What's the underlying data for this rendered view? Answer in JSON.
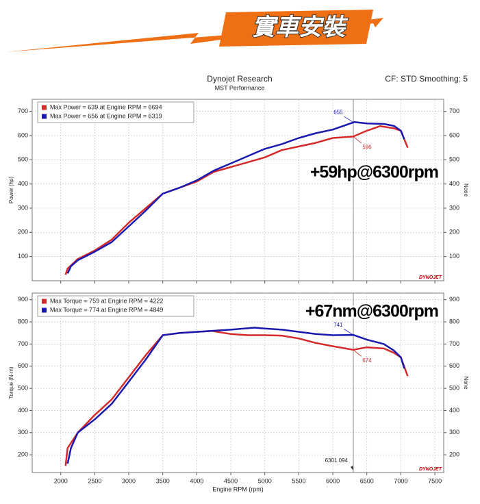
{
  "header": {
    "banner": "實車安裝",
    "title": "Dynojet Research",
    "subtitle": "MST Performance",
    "settings": "CF: STD Smoothing: 5"
  },
  "chart_data": [
    {
      "type": "line",
      "ylabel": "Power (hp)",
      "right_label": "None",
      "logo": "DYNOJET",
      "callout": "+59hp@6300rpm",
      "xlim": [
        1580,
        7630
      ],
      "xticks": [
        2000,
        2500,
        3000,
        3500,
        4000,
        4500,
        5000,
        5500,
        6000,
        6500,
        7000,
        7500
      ],
      "ylim": [
        0,
        750
      ],
      "yticks": [
        100,
        200,
        300,
        400,
        500,
        600,
        700
      ],
      "grid": true,
      "series": [
        {
          "name": "Max Power = 639 at Engine RPM = 6694",
          "color": "#d42a2a",
          "x": [
            2070,
            2100,
            2250,
            2500,
            2750,
            3000,
            3250,
            3500,
            3750,
            4000,
            4250,
            4500,
            4750,
            5000,
            5250,
            5500,
            5750,
            6000,
            6300,
            6500,
            6694,
            6900,
            7000,
            7100
          ],
          "values": [
            25,
            50,
            90,
            125,
            170,
            240,
            300,
            360,
            385,
            410,
            450,
            470,
            490,
            510,
            540,
            555,
            570,
            590,
            596,
            620,
            639,
            630,
            620,
            550
          ]
        },
        {
          "name": "Max Power = 656 at Engine RPM = 6319",
          "color": "#1a1ab0",
          "x": [
            2100,
            2150,
            2250,
            2500,
            2750,
            3000,
            3250,
            3500,
            3750,
            4000,
            4250,
            4500,
            4750,
            5000,
            5250,
            5500,
            5750,
            6000,
            6319,
            6500,
            6750,
            6900,
            7000,
            7050
          ],
          "values": [
            30,
            60,
            85,
            120,
            160,
            225,
            290,
            360,
            385,
            415,
            455,
            485,
            515,
            545,
            565,
            590,
            610,
            625,
            656,
            650,
            648,
            640,
            620,
            585
          ]
        }
      ],
      "annotations": [
        {
          "x": 6300,
          "y": 655,
          "color": "#1a1ab0"
        },
        {
          "x": 6300,
          "y": 596,
          "color": "#d42a2a"
        }
      ]
    },
    {
      "type": "line",
      "ylabel": "Torque (N·m)",
      "right_label": "None",
      "logo": "DYNOJET",
      "callout": "+67nm@6300rpm",
      "xlabel": "Engine RPM (rpm)",
      "cursor_x": 6301.094,
      "xlim": [
        1580,
        7630
      ],
      "xticks": [
        2000,
        2500,
        3000,
        3500,
        4000,
        4500,
        5000,
        5500,
        6000,
        6500,
        7000,
        7500
      ],
      "ylim": [
        120,
        930
      ],
      "yticks": [
        200,
        300,
        400,
        500,
        600,
        700,
        800,
        900
      ],
      "grid": true,
      "series": [
        {
          "name": "Max Torque = 759 at Engine RPM = 4222",
          "color": "#d42a2a",
          "x": [
            2070,
            2100,
            2250,
            2500,
            2750,
            3000,
            3250,
            3500,
            3750,
            4000,
            4222,
            4500,
            4750,
            5000,
            5250,
            5500,
            5750,
            6000,
            6300,
            6500,
            6750,
            6900,
            7000,
            7100
          ],
          "values": [
            150,
            230,
            300,
            380,
            450,
            550,
            650,
            740,
            750,
            755,
            759,
            745,
            740,
            740,
            738,
            725,
            705,
            690,
            674,
            685,
            680,
            660,
            640,
            555
          ]
        },
        {
          "name": "Max Torque = 774 at Engine RPM = 4849",
          "color": "#1a1ab0",
          "x": [
            2100,
            2150,
            2250,
            2500,
            2750,
            3000,
            3250,
            3500,
            3750,
            4000,
            4250,
            4500,
            4849,
            5000,
            5250,
            5500,
            5750,
            6000,
            6300,
            6500,
            6750,
            6900,
            7000,
            7050
          ],
          "values": [
            160,
            230,
            300,
            360,
            430,
            530,
            630,
            740,
            750,
            755,
            760,
            765,
            774,
            770,
            765,
            755,
            745,
            740,
            741,
            720,
            700,
            670,
            640,
            590
          ]
        }
      ],
      "annotations": [
        {
          "x": 6300,
          "y": 741,
          "color": "#1a1ab0"
        },
        {
          "x": 6300,
          "y": 674,
          "color": "#d42a2a"
        }
      ]
    }
  ]
}
